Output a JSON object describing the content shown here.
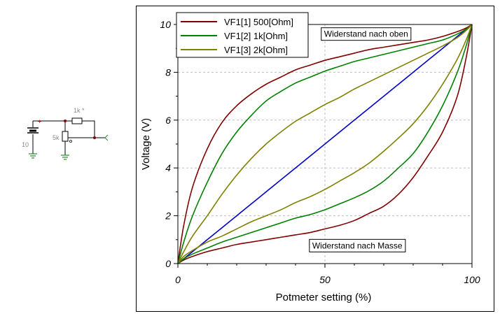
{
  "schematic": {
    "battery_label": "10",
    "resistor_label": "1k *",
    "pot_label": "5k",
    "colors": {
      "wire": "#000000",
      "ground": "#2a8a2a",
      "component": "#2a8a2a"
    }
  },
  "chart_data": {
    "type": "line",
    "xlabel": "Potmeter setting (%)",
    "ylabel": "Voltage (V)",
    "xlim": [
      0,
      100
    ],
    "ylim": [
      0,
      10
    ],
    "xticks": [
      0,
      50,
      100
    ],
    "yticks": [
      0,
      2,
      4,
      6,
      8,
      10
    ],
    "grid": true,
    "legend_position": "top-left",
    "legend": [
      {
        "label": "VF1[1]  500[Ohm]",
        "color": "#800000"
      },
      {
        "label": "VF1[2]  1k[Ohm]",
        "color": "#008000"
      },
      {
        "label": "VF1[3]  2k[Ohm]",
        "color": "#808000"
      }
    ],
    "annotations": [
      {
        "text": "Widerstand nach oben",
        "x": 64,
        "y": 9.6
      },
      {
        "text": "Widerstand nach Masse",
        "x": 61,
        "y": 0.75
      }
    ],
    "x": [
      0,
      2,
      5,
      10,
      15,
      20,
      25,
      30,
      35,
      40,
      45,
      50,
      55,
      60,
      65,
      70,
      75,
      80,
      85,
      90,
      95,
      98,
      100
    ],
    "series": [
      {
        "color": "#0000cc",
        "values": [
          0,
          0.2,
          0.5,
          1,
          1.5,
          2,
          2.5,
          3,
          3.5,
          4,
          4.5,
          5,
          5.5,
          6,
          6.5,
          7,
          7.5,
          8,
          8.5,
          9,
          9.5,
          9.8,
          10
        ]
      },
      {
        "color": "#800000",
        "values": [
          0,
          1.6,
          3.2,
          4.8,
          5.9,
          6.6,
          7.1,
          7.5,
          7.8,
          8.1,
          8.3,
          8.5,
          8.65,
          8.8,
          8.95,
          9.05,
          9.15,
          9.25,
          9.35,
          9.5,
          9.7,
          9.85,
          10
        ]
      },
      {
        "color": "#800000",
        "values": [
          0,
          0.15,
          0.3,
          0.5,
          0.65,
          0.8,
          0.9,
          1.0,
          1.1,
          1.2,
          1.3,
          1.45,
          1.6,
          1.8,
          2.1,
          2.4,
          2.9,
          3.6,
          4.5,
          5.5,
          7.0,
          8.6,
          10
        ]
      },
      {
        "color": "#008000",
        "values": [
          0,
          0.9,
          2.0,
          3.4,
          4.6,
          5.5,
          6.2,
          6.8,
          7.2,
          7.55,
          7.8,
          8.05,
          8.25,
          8.45,
          8.6,
          8.75,
          8.9,
          9.05,
          9.2,
          9.35,
          9.6,
          9.8,
          10
        ]
      },
      {
        "color": "#008000",
        "values": [
          0,
          0.2,
          0.4,
          0.65,
          0.9,
          1.1,
          1.3,
          1.5,
          1.7,
          1.9,
          2.05,
          2.25,
          2.5,
          2.75,
          3.05,
          3.45,
          4.0,
          4.6,
          5.5,
          6.6,
          8.0,
          9.1,
          10
        ]
      },
      {
        "color": "#808000",
        "values": [
          0,
          0.5,
          1.15,
          2.0,
          2.9,
          3.7,
          4.4,
          5.0,
          5.5,
          5.95,
          6.3,
          6.65,
          6.95,
          7.3,
          7.6,
          7.9,
          8.2,
          8.5,
          8.8,
          9.1,
          9.45,
          9.75,
          10
        ]
      },
      {
        "color": "#808000",
        "values": [
          0,
          0.3,
          0.55,
          0.9,
          1.15,
          1.45,
          1.75,
          2.0,
          2.25,
          2.55,
          2.8,
          3.1,
          3.45,
          3.8,
          4.2,
          4.7,
          5.25,
          5.85,
          6.6,
          7.5,
          8.55,
          9.35,
          10
        ]
      }
    ]
  }
}
